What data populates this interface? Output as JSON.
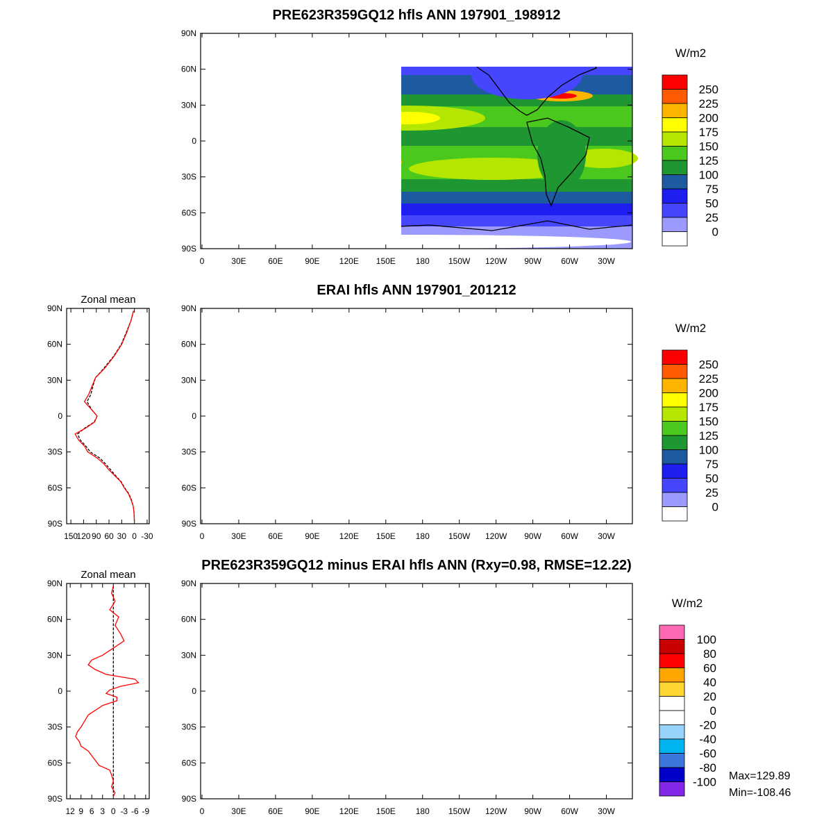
{
  "chart_data": [
    {
      "type": "heatmap",
      "title": "PRE623R359GQ12 hfls ANN 197901_198912",
      "units": "W/m2",
      "x_ticks": [
        "0",
        "30E",
        "60E",
        "90E",
        "120E",
        "150E",
        "180",
        "150W",
        "120W",
        "90W",
        "60W",
        "30W"
      ],
      "y_ticks": [
        "90N",
        "60N",
        "30N",
        "0",
        "30S",
        "60S",
        "90S"
      ],
      "colorbar_levels": [
        "250",
        "225",
        "200",
        "175",
        "150",
        "125",
        "100",
        "75",
        "50",
        "25",
        "0"
      ],
      "colorbar_colors": [
        "#ff0000",
        "#ff5a00",
        "#ffb400",
        "#ffff00",
        "#b4e600",
        "#4bc81e",
        "#1e9632",
        "#1e5aa0",
        "#1e1ef0",
        "#4646ff",
        "#9b9bff",
        "#ffffff"
      ]
    },
    {
      "type": "heatmap",
      "title": "ERAI hfls ANN 197901_201212",
      "units": "W/m2",
      "x_ticks": [
        "0",
        "30E",
        "60E",
        "90E",
        "120E",
        "150E",
        "180",
        "150W",
        "120W",
        "90W",
        "60W",
        "30W"
      ],
      "y_ticks": [
        "90N",
        "60N",
        "30N",
        "0",
        "30S",
        "60S",
        "90S"
      ],
      "colorbar_levels": [
        "250",
        "225",
        "200",
        "175",
        "150",
        "125",
        "100",
        "75",
        "50",
        "25",
        "0"
      ],
      "colorbar_colors": [
        "#ff0000",
        "#ff5a00",
        "#ffb400",
        "#ffff00",
        "#b4e600",
        "#4bc81e",
        "#1e9632",
        "#1e5aa0",
        "#1e1ef0",
        "#4646ff",
        "#9b9bff",
        "#ffffff"
      ],
      "zonal_mean": {
        "title": "Zonal mean",
        "x_ticks": [
          "150",
          "120",
          "90",
          "60",
          "30",
          "0",
          "-30"
        ],
        "y_ticks": [
          "90N",
          "60N",
          "30N",
          "0",
          "30S",
          "60S",
          "90S"
        ],
        "series": [
          {
            "color": "#ff0000",
            "lat": [
              88,
              80,
              70,
              60,
              50,
              40,
              32,
              25,
              18,
              12,
              5,
              0,
              -5,
              -10,
              -15,
              -20,
              -25,
              -30,
              -35,
              -40,
              -45,
              -50,
              -55,
              -60,
              -65,
              -70,
              -75,
              -80,
              -88
            ],
            "values": [
              2,
              8,
              18,
              30,
              48,
              70,
              92,
              100,
              108,
              118,
              100,
              88,
              94,
              115,
              140,
              132,
              118,
              110,
              88,
              72,
              60,
              46,
              32,
              24,
              14,
              8,
              3,
              1,
              0
            ]
          },
          {
            "color": "#000000",
            "lat": [
              88,
              80,
              70,
              60,
              50,
              40,
              32,
              25,
              18,
              12,
              5,
              0,
              -5,
              -10,
              -15,
              -20,
              -25,
              -30,
              -35,
              -40,
              -45,
              -50,
              -55,
              -60,
              -65,
              -70,
              -75,
              -80,
              -88
            ],
            "values": [
              2,
              8,
              19,
              31,
              49,
              72,
              92,
              98,
              103,
              112,
              100,
              88,
              95,
              117,
              134,
              128,
              115,
              104,
              82,
              68,
              56,
              44,
              31,
              23,
              13,
              7,
              3,
              1,
              0
            ]
          }
        ]
      }
    },
    {
      "type": "heatmap",
      "title": "PRE623R359GQ12 minus ERAI hfls ANN (Rxy=0.98, RMSE=12.22)",
      "units": "W/m2",
      "x_ticks": [
        "0",
        "30E",
        "60E",
        "90E",
        "120E",
        "150E",
        "180",
        "150W",
        "120W",
        "90W",
        "60W",
        "30W"
      ],
      "y_ticks": [
        "90N",
        "60N",
        "30N",
        "0",
        "30S",
        "60S",
        "90S"
      ],
      "colorbar_levels": [
        "100",
        "80",
        "60",
        "40",
        "20",
        "0",
        "-20",
        "-40",
        "-60",
        "-80",
        "-100"
      ],
      "colorbar_colors": [
        "#ff69b4",
        "#c80000",
        "#ff0000",
        "#ffa500",
        "#ffd732",
        "#ffffff",
        "#ffffff",
        "#96d2fa",
        "#00b4f0",
        "#3c78dc",
        "#0000c8",
        "#8228e6"
      ],
      "max_label": "Max=129.89",
      "min_label": "Min=-108.46",
      "zonal_mean": {
        "title": "Zonal mean",
        "x_ticks": [
          "12",
          "9",
          "6",
          "3",
          "0",
          "-3",
          "-6",
          "-9"
        ],
        "y_ticks": [
          "90N",
          "60N",
          "30N",
          "0",
          "30S",
          "60S",
          "90S"
        ],
        "series": [
          {
            "color": "#ff0000",
            "lat": [
              88,
              82,
              75,
              68,
              62,
              55,
              48,
              42,
              38,
              34,
              30,
              26,
              22,
              18,
              14,
              10,
              7,
              4,
              1,
              -2,
              -5,
              -8,
              -12,
              -16,
              -20,
              -25,
              -30,
              -34,
              -38,
              -42,
              -46,
              -50,
              -54,
              -58,
              -62,
              -66,
              -70,
              -75,
              -80,
              -85,
              -88
            ],
            "values": [
              0,
              0.5,
              -0.5,
              1,
              -1.5,
              -0.5,
              -2,
              -3,
              -1,
              1,
              3,
              6,
              7,
              5,
              2,
              -6,
              -7,
              -2,
              1,
              2,
              -1,
              -1,
              3,
              5,
              7,
              8,
              9,
              10,
              10.5,
              9.5,
              9,
              7,
              6,
              5,
              4,
              1,
              0.5,
              0,
              0.5,
              -0.5,
              0
            ]
          },
          {
            "color": "#000000",
            "lat": [
              88,
              -88
            ],
            "values": [
              0,
              0
            ]
          }
        ]
      }
    }
  ]
}
